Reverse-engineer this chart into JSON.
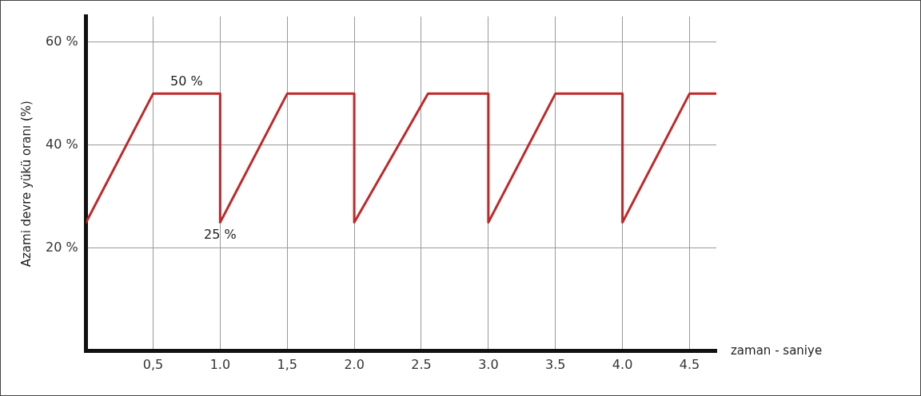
{
  "chart_data": {
    "type": "line",
    "xlabel": "zaman - saniye",
    "ylabel": "Azami devre yükü oranı (%)",
    "x": [
      0,
      0.5,
      1.0,
      1.0,
      1.5,
      2.0,
      2.0,
      2.55,
      3.0,
      3.0,
      3.5,
      4.0,
      4.0,
      4.5,
      4.7
    ],
    "series": [
      {
        "color": "#c0282a",
        "values": [
          25,
          50,
          50,
          25,
          50,
          50,
          25,
          50,
          50,
          25,
          50,
          50,
          25,
          50,
          50
        ]
      }
    ],
    "xlim": [
      0,
      4.7
    ],
    "ylim": [
      0,
      65
    ],
    "xticks": [
      {
        "value": 0.5,
        "label": "0,5"
      },
      {
        "value": 1.0,
        "label": "1.0"
      },
      {
        "value": 1.5,
        "label": "1,5"
      },
      {
        "value": 2.0,
        "label": "2.0"
      },
      {
        "value": 2.5,
        "label": "2.5"
      },
      {
        "value": 3.0,
        "label": "3.0"
      },
      {
        "value": 3.5,
        "label": "3.5"
      },
      {
        "value": 4.0,
        "label": "4.0"
      },
      {
        "value": 4.5,
        "label": "4.5"
      }
    ],
    "yticks": [
      {
        "value": 20,
        "label": "20 %"
      },
      {
        "value": 40,
        "label": "40 %"
      },
      {
        "value": 60,
        "label": "60 %"
      }
    ],
    "annotations": [
      {
        "text": "50 %",
        "x": 0.75,
        "y": 50
      },
      {
        "text": "25 %",
        "x": 1.0,
        "y": 25
      }
    ],
    "grid": true,
    "legend": false,
    "marker": "none",
    "line_style": "solid"
  }
}
